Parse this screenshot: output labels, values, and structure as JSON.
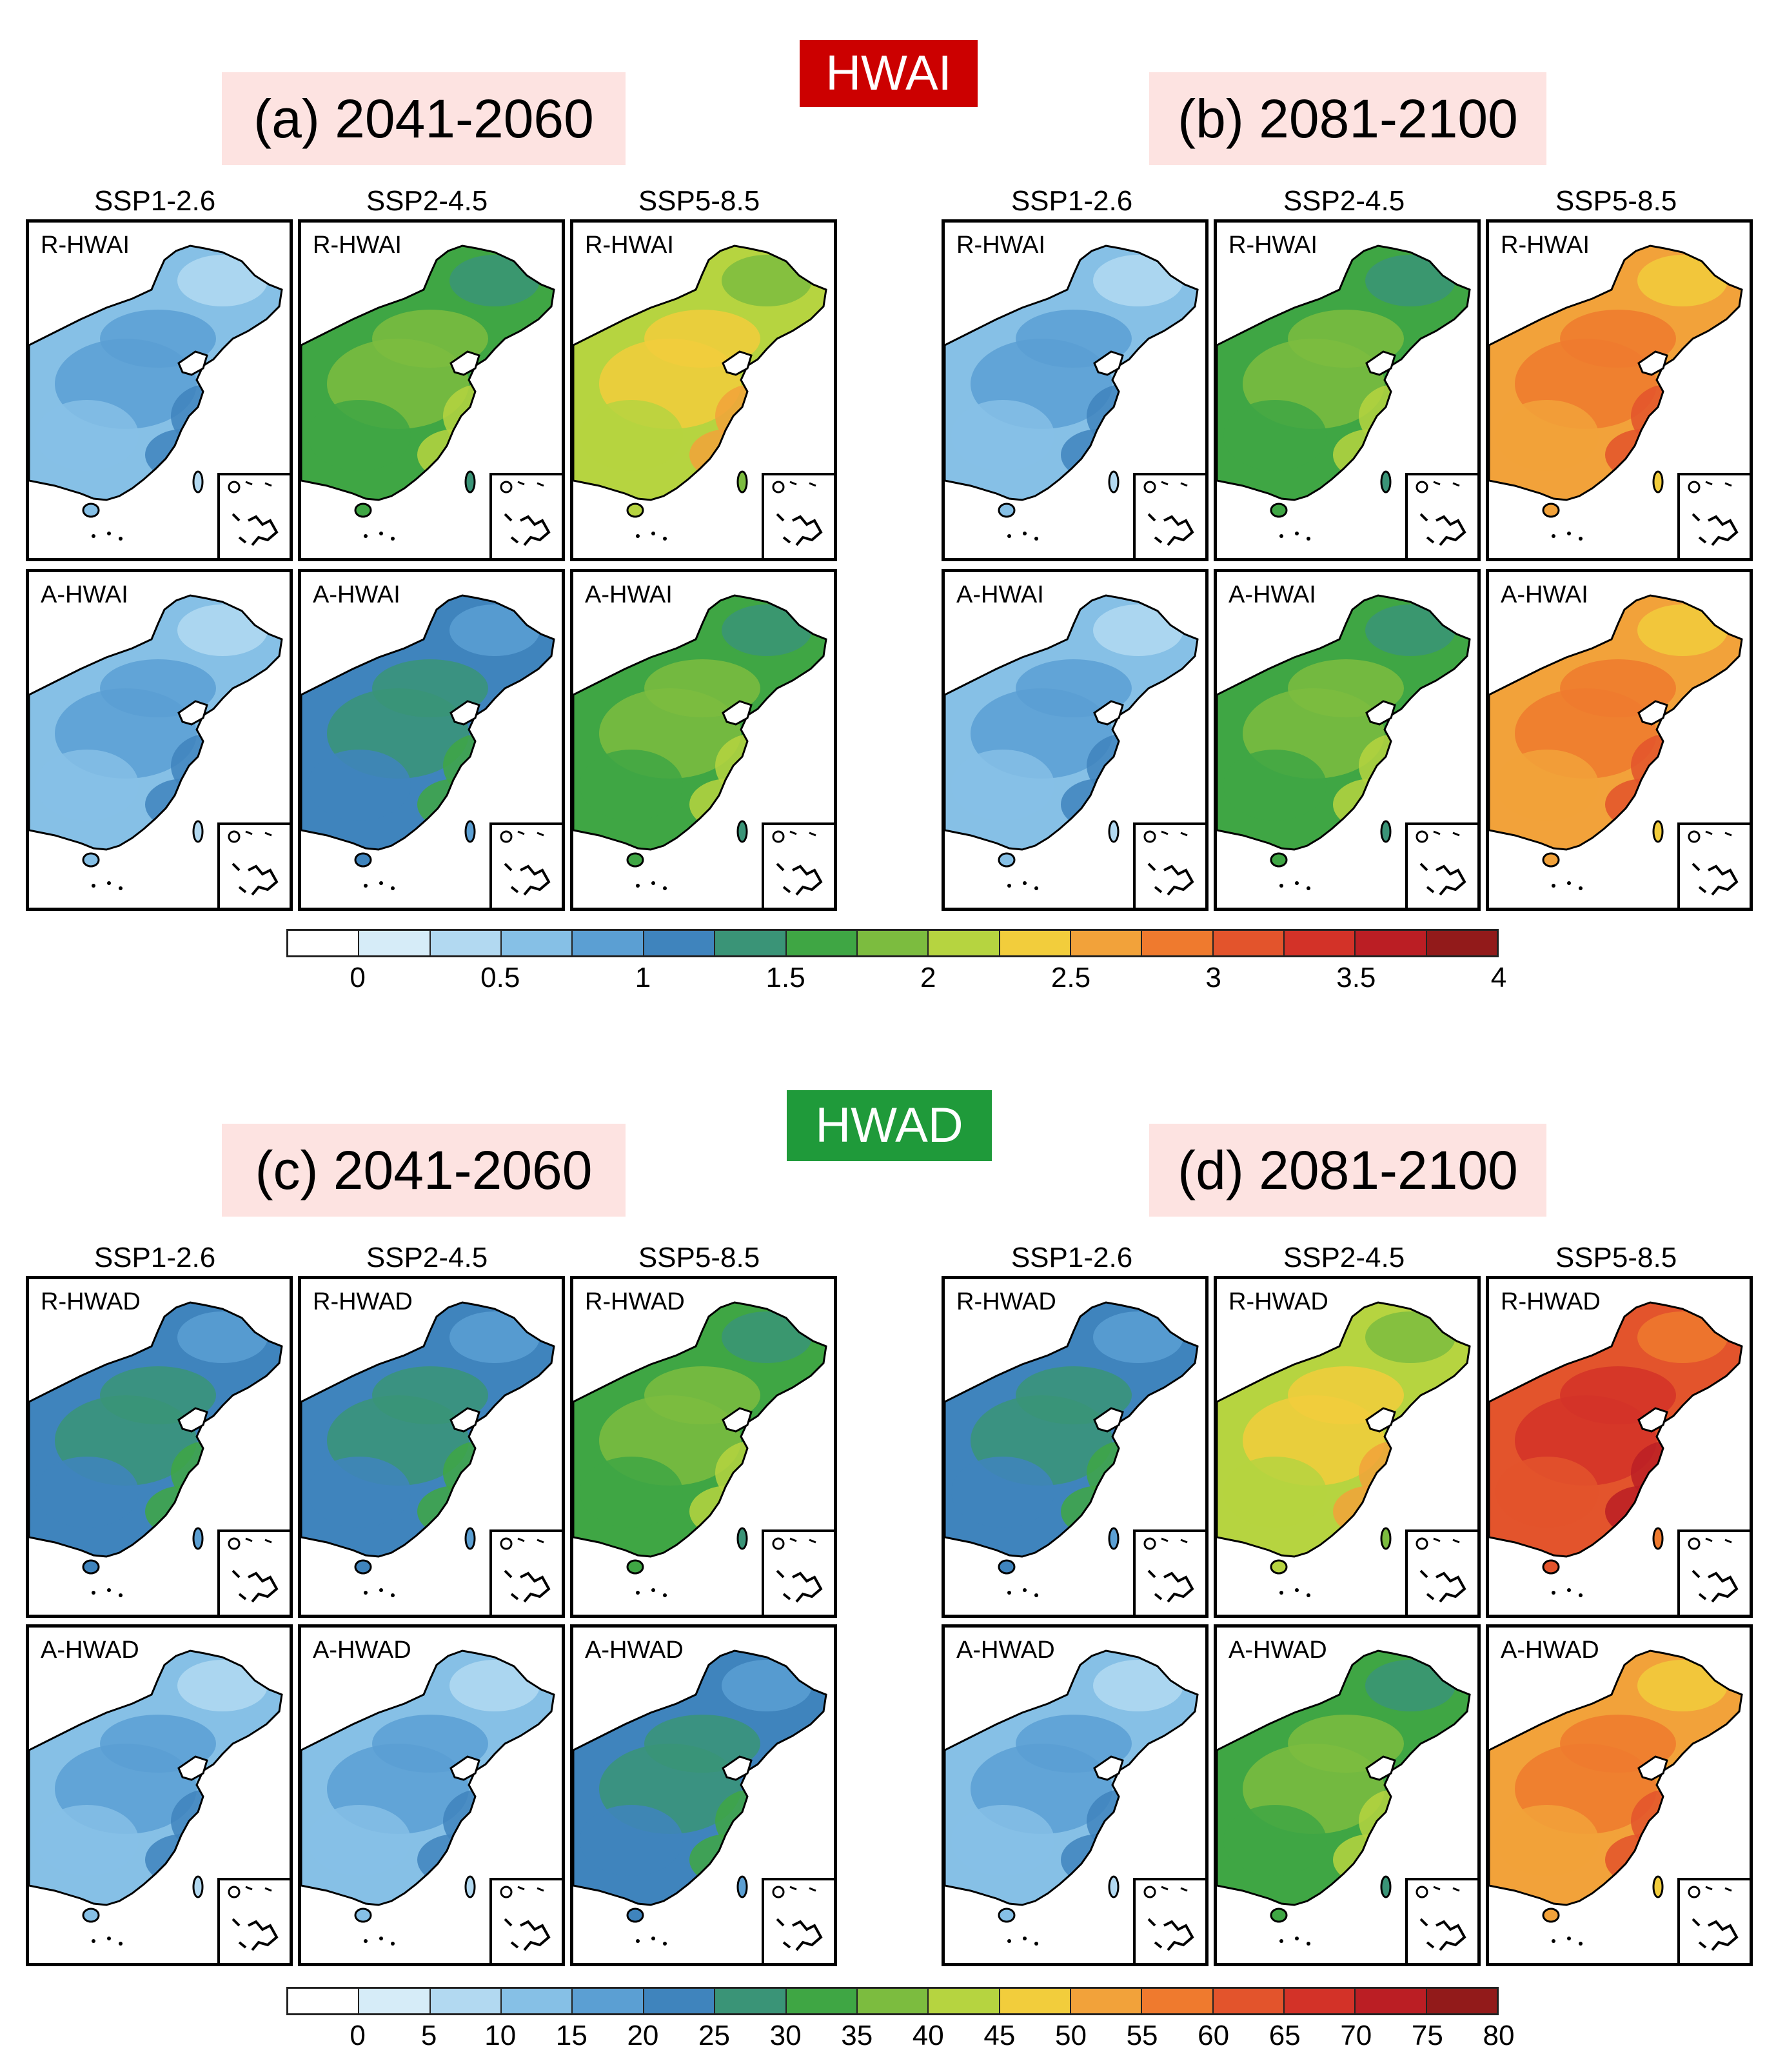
{
  "figure": {
    "sections": [
      {
        "badge": "HWAI",
        "badge_color": "#cc0000",
        "colorbar": {
          "colors": [
            "#ffffff",
            "#d6ecf8",
            "#b2d9f1",
            "#86c0e6",
            "#5b9fd3",
            "#3f84bd",
            "#3a9477",
            "#3fa644",
            "#7cbc3f",
            "#b6d440",
            "#f2cd3c",
            "#f2a23a",
            "#ef7a2e",
            "#e3542c",
            "#d33228",
            "#bb1e24",
            "#921a1a"
          ],
          "tick_labels": [
            "0",
            "0.5",
            "1",
            "1.5",
            "2",
            "2.5",
            "3",
            "3.5",
            "4"
          ]
        },
        "periods": [
          {
            "title": "(a) 2041-2060",
            "scenarios": [
              "SSP1-2.6",
              "SSP2-4.5",
              "SSP5-8.5"
            ],
            "rows": [
              {
                "label": "R-HWAI",
                "levels": [
                  1,
                  3,
                  4
                ]
              },
              {
                "label": "A-HWAI",
                "levels": [
                  1,
                  2,
                  3
                ]
              }
            ]
          },
          {
            "title": "(b) 2081-2100",
            "scenarios": [
              "SSP1-2.6",
              "SSP2-4.5",
              "SSP5-8.5"
            ],
            "rows": [
              {
                "label": "R-HWAI",
                "levels": [
                  1,
                  3,
                  5
                ]
              },
              {
                "label": "A-HWAI",
                "levels": [
                  1,
                  3,
                  5
                ]
              }
            ]
          }
        ]
      },
      {
        "badge": "HWAD",
        "badge_color": "#1f9a3a",
        "colorbar": {
          "colors": [
            "#ffffff",
            "#d6ecf8",
            "#b2d9f1",
            "#86c0e6",
            "#5b9fd3",
            "#3f84bd",
            "#3a9477",
            "#3fa644",
            "#7cbc3f",
            "#b6d440",
            "#f2cd3c",
            "#f2a23a",
            "#ef7a2e",
            "#e3542c",
            "#d33228",
            "#bb1e24",
            "#921a1a"
          ],
          "tick_labels": [
            "0",
            "5",
            "10",
            "15",
            "20",
            "25",
            "30",
            "35",
            "40",
            "45",
            "50",
            "55",
            "60",
            "65",
            "70",
            "75",
            "80"
          ]
        },
        "periods": [
          {
            "title": "(c) 2041-2060",
            "scenarios": [
              "SSP1-2.6",
              "SSP2-4.5",
              "SSP5-8.5"
            ],
            "rows": [
              {
                "label": "R-HWAD",
                "levels": [
                  2,
                  2,
                  3
                ]
              },
              {
                "label": "A-HWAD",
                "levels": [
                  1,
                  1,
                  2
                ]
              }
            ]
          },
          {
            "title": "(d) 2081-2100",
            "scenarios": [
              "SSP1-2.6",
              "SSP2-4.5",
              "SSP5-8.5"
            ],
            "rows": [
              {
                "label": "R-HWAD",
                "levels": [
                  2,
                  4,
                  6
                ]
              },
              {
                "label": "A-HWAD",
                "levels": [
                  1,
                  3,
                  5
                ]
              }
            ]
          }
        ]
      }
    ]
  }
}
